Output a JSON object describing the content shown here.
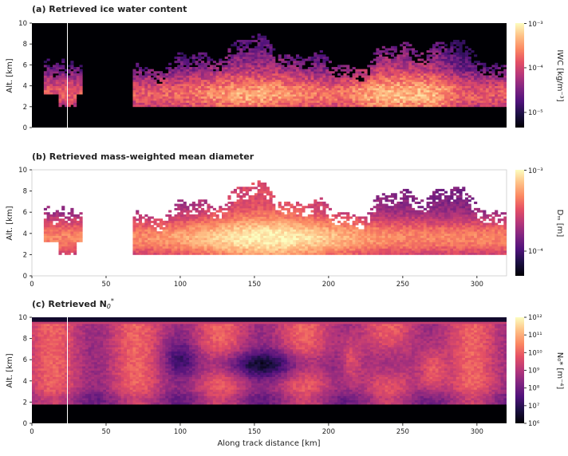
{
  "chart_data": [
    {
      "type": "heatmap",
      "title": "(a) Retrieved ice water content",
      "ylabel": "Alt. [km]",
      "xlabel": "",
      "xlim": [
        0,
        320
      ],
      "ylim": [
        0,
        10
      ],
      "yticks": [
        "0",
        "2",
        "4",
        "6",
        "8",
        "10"
      ],
      "xticks": [],
      "colorbar": {
        "label": "IWC [kg/m⁻³]",
        "scale": "log",
        "range": [
          4e-06,
          0.001
        ],
        "ticks": [
          "10⁻³",
          "10⁻⁴",
          "10⁻⁵"
        ]
      },
      "colormap": "magma",
      "background": "#000004",
      "marker_line_x": 24,
      "summary": "Dense cloud between ~2 and 8 km from x≈70 to 320 km; small patch near x≈10–25 km at 3–6 km; strongest values near 2.5–4 km around x≈150 and 240 km"
    },
    {
      "type": "heatmap",
      "title": "(b) Retrieved mass-weighted mean diameter",
      "ylabel": "Alt. [km]",
      "xlabel": "",
      "xlim": [
        0,
        320
      ],
      "ylim": [
        0,
        10
      ],
      "yticks": [
        "0",
        "2",
        "4",
        "6",
        "8",
        "10"
      ],
      "xticks": [
        "0",
        "50",
        "100",
        "150",
        "200",
        "250",
        "300"
      ],
      "colorbar": {
        "label": "Dₘ [m]",
        "scale": "log",
        "range": [
          5e-05,
          0.001
        ],
        "ticks": [
          "10⁻³",
          "10⁻⁴"
        ]
      },
      "colormap": "magma",
      "background": "#ffffff",
      "summary": "Largest diameters in the 2–5 km layer between x≈120 and 200 km; smaller sizes near cloud top (6–8.5 km)"
    },
    {
      "type": "heatmap",
      "title": "(c) Retrieved N",
      "title_sym": "0",
      "title_sup": "*",
      "ylabel": "Alt. [km]",
      "xlabel": "Along track distance [km]",
      "xlim": [
        0,
        320
      ],
      "ylim": [
        0,
        10
      ],
      "yticks": [
        "0",
        "2",
        "4",
        "6",
        "8",
        "10"
      ],
      "xticks": [
        "0",
        "50",
        "100",
        "150",
        "200",
        "250",
        "300"
      ],
      "colorbar": {
        "label": "N₀* [m⁻⁴]",
        "scale": "log",
        "range": [
          1000000.0,
          1000000000000.0
        ],
        "ticks": [
          "10¹²",
          "10¹¹",
          "10¹⁰",
          "10⁹",
          "10⁸",
          "10⁷",
          "10⁶"
        ]
      },
      "colormap": "magma",
      "background": "#000004",
      "marker_line_x": 24,
      "summary": "Uniform high values near 9.5 km and bright band above 9.6 km; low values (dark) in core 4.5–6.5 km around x≈130–180 km; dark below 1.8 km"
    }
  ]
}
